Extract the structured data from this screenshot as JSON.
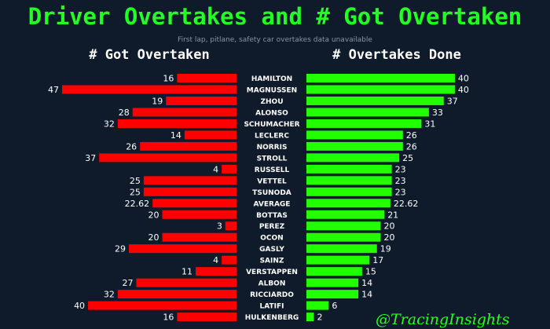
{
  "title": "Driver Overtakes and # Got Overtaken",
  "subtitle": "First lap, pitlane, safety car overtakes data unavailable",
  "watermark": "@TracingInsights",
  "colors": {
    "background": "#0f1a2a",
    "got_overtaken_bar": "#ff0000",
    "overtakes_done_bar": "#22ff00",
    "title": "#22ff22"
  },
  "chart_data": {
    "type": "bar",
    "orientation": "horizontal-diverging",
    "categories": [
      "HAMILTON",
      "MAGNUSSEN",
      "ZHOU",
      "ALONSO",
      "SCHUMACHER",
      "LECLERC",
      "NORRIS",
      "STROLL",
      "RUSSELL",
      "VETTEL",
      "TSUNODA",
      "AVERAGE",
      "BOTTAS",
      "PEREZ",
      "OCON",
      "GASLY",
      "SAINZ",
      "VERSTAPPEN",
      "ALBON",
      "RICCIARDO",
      "LATIFI",
      "HULKENBERG"
    ],
    "series": [
      {
        "name": "# Got Overtaken",
        "values": [
          16,
          47,
          19,
          28,
          32,
          14,
          26,
          37,
          4,
          25,
          25,
          22.62,
          20,
          3,
          20,
          29,
          4,
          11,
          27,
          32,
          40,
          16
        ]
      },
      {
        "name": "# Overtakes Done",
        "values": [
          40,
          40,
          37,
          33,
          31,
          26,
          26,
          25,
          23,
          23,
          23,
          22.62,
          21,
          20,
          20,
          19,
          17,
          15,
          14,
          14,
          6,
          2
        ]
      }
    ],
    "xlim": [
      0,
      47
    ]
  }
}
